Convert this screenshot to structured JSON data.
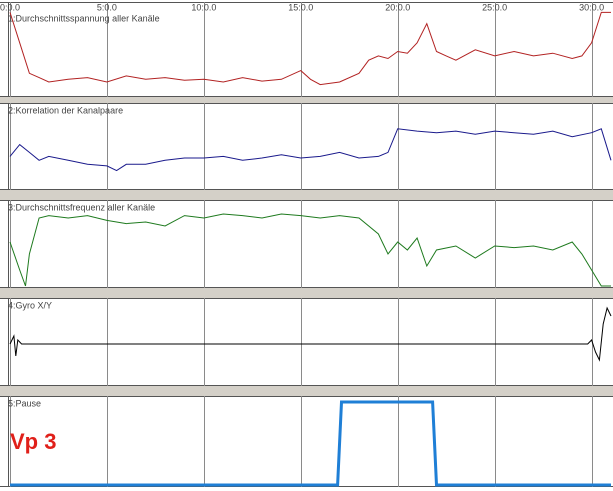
{
  "chart_data": [
    {
      "type": "line",
      "title": "1:Durchschnittsspannung aller Kanäle",
      "color": "#b22222",
      "xlim": [
        0,
        31
      ],
      "ylim": [
        0,
        100
      ],
      "grid": true,
      "xticks": [
        {
          "value": 0,
          "label": "0:0.0"
        },
        {
          "value": 5,
          "label": "5:0.0"
        },
        {
          "value": 10,
          "label": "10:0.0"
        },
        {
          "value": 15,
          "label": "15:0.0"
        },
        {
          "value": 20,
          "label": "20:0.0"
        },
        {
          "value": 25,
          "label": "25:0.0"
        },
        {
          "value": 30,
          "label": "30:0.0"
        }
      ],
      "x": [
        0,
        0.5,
        1,
        1.5,
        2,
        3,
        4,
        5,
        6,
        7,
        8,
        9,
        10,
        11,
        12,
        13,
        14,
        15,
        15.5,
        16,
        17,
        18,
        18.5,
        19,
        19.5,
        20,
        20.5,
        21,
        21.5,
        22,
        22.5,
        23,
        24,
        25,
        26,
        27,
        28,
        29,
        29.5,
        30,
        30.5,
        31
      ],
      "values": [
        95,
        60,
        25,
        20,
        15,
        18,
        20,
        15,
        22,
        18,
        20,
        17,
        18,
        15,
        20,
        16,
        18,
        28,
        18,
        12,
        15,
        25,
        40,
        45,
        42,
        50,
        48,
        60,
        82,
        50,
        45,
        40,
        52,
        45,
        50,
        45,
        48,
        42,
        45,
        60,
        95,
        95
      ]
    },
    {
      "type": "line",
      "title": "2:Korrelation der Kanalpaare",
      "color": "#1a1a8c",
      "xlim": [
        0,
        31
      ],
      "ylim": [
        0,
        100
      ],
      "grid": true,
      "x": [
        0,
        0.5,
        1,
        1.5,
        2,
        3,
        4,
        5,
        5.5,
        6,
        7,
        8,
        9,
        10,
        11,
        12,
        13,
        14,
        15,
        16,
        17,
        18,
        19,
        19.5,
        20,
        21,
        22,
        23,
        24,
        25,
        26,
        27,
        28,
        29,
        30,
        30.5,
        31
      ],
      "values": [
        40,
        55,
        45,
        35,
        40,
        35,
        30,
        28,
        22,
        30,
        30,
        35,
        38,
        38,
        40,
        35,
        38,
        42,
        38,
        40,
        45,
        38,
        40,
        45,
        75,
        72,
        70,
        72,
        68,
        72,
        70,
        68,
        72,
        65,
        70,
        75,
        35
      ]
    },
    {
      "type": "line",
      "title": "3:Durchschnittsfrequenz aller Kanäle",
      "color": "#1e7a1e",
      "xlim": [
        0,
        31
      ],
      "ylim": [
        0,
        100
      ],
      "grid": true,
      "x": [
        0,
        0.5,
        0.8,
        1,
        1.5,
        2,
        3,
        4,
        5,
        6,
        7,
        8,
        9,
        10,
        11,
        12,
        13,
        14,
        15,
        16,
        17,
        18,
        19,
        19.5,
        20,
        20.5,
        21,
        21.5,
        22,
        23,
        24,
        25,
        26,
        27,
        28,
        29,
        29.5,
        30,
        30.5,
        31
      ],
      "values": [
        55,
        20,
        0,
        40,
        85,
        88,
        85,
        88,
        82,
        78,
        80,
        75,
        88,
        85,
        90,
        88,
        85,
        90,
        88,
        85,
        88,
        85,
        65,
        40,
        55,
        45,
        60,
        25,
        45,
        50,
        35,
        50,
        48,
        50,
        45,
        55,
        40,
        20,
        0,
        0
      ]
    },
    {
      "type": "line",
      "title": "4:Gyro X/Y",
      "color": "#000000",
      "xlim": [
        0,
        31
      ],
      "ylim": [
        0,
        100
      ],
      "grid": true,
      "x": [
        0,
        0.2,
        0.3,
        0.4,
        0.6,
        5,
        10,
        15,
        20,
        25,
        29.8,
        30,
        30.2,
        30.4,
        30.6,
        30.8,
        31
      ],
      "values": [
        50,
        60,
        35,
        55,
        50,
        50,
        50,
        50,
        50,
        50,
        50,
        55,
        40,
        30,
        75,
        95,
        85
      ]
    },
    {
      "type": "line",
      "title": "5:Pause",
      "color": "#1f7fd6",
      "xlim": [
        0,
        31
      ],
      "ylim": [
        0,
        100
      ],
      "grid": true,
      "annotation": "Vp 3",
      "x": [
        0,
        16.9,
        17.1,
        21.8,
        22.0,
        31
      ],
      "values": [
        0,
        0,
        100,
        100,
        0,
        0
      ]
    }
  ]
}
